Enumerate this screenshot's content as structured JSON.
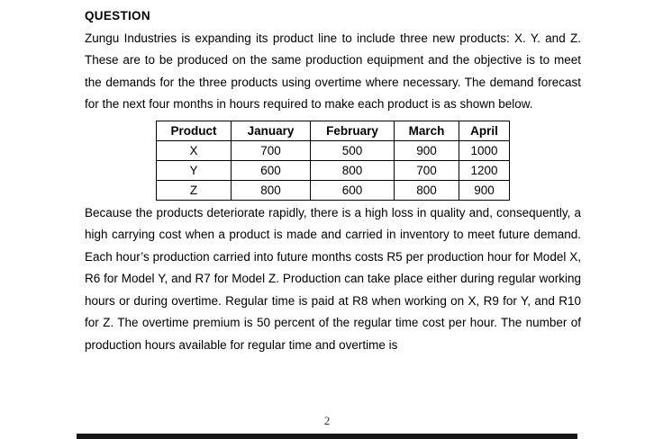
{
  "page": {
    "heading": "QUESTION",
    "paragraph_intro": "Zungu Industries is expanding its product line to include three new products: X. Y. and Z. These are to be produced on the same production equipment and the objective is to meet the demands for the three products using overtime where necessary. The demand forecast for the next four months in hours required to make each product is as shown below.",
    "paragraph_body": "Because the products deteriorate rapidly, there is a high loss in quality and, consequently, a high carrying cost when a product is made and carried in inventory to meet future demand. Each hour’s production carried into future months costs R5 per production hour for Model X, R6 for Model Y, and R7 for Model Z. Production can take place either during regular working hours or during overtime. Regular time is paid at R8 when working on X, R9 for Y, and R10 for Z. The overtime premium is 50 percent of the regular time cost per hour. The number of production hours available for regular time and overtime is",
    "page_number": "2"
  },
  "table": {
    "headers": [
      "Product",
      "January",
      "February",
      "March",
      "April"
    ],
    "rows": [
      [
        "X",
        "700",
        "500",
        "900",
        "1000"
      ],
      [
        "Y",
        "600",
        "800",
        "700",
        "1200"
      ],
      [
        "Z",
        "800",
        "600",
        "800",
        "900"
      ]
    ]
  }
}
